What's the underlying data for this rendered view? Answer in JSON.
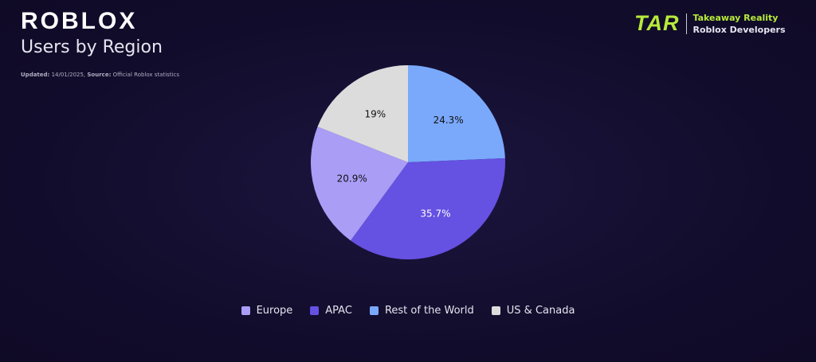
{
  "header": {
    "logo": "ROBLOX",
    "title": "Users by Region",
    "updated_label": "Updated:",
    "updated_value": "14/01/2025,",
    "source_label": "Source:",
    "source_value": "Official Roblox statistics"
  },
  "brand": {
    "logo": "TAR",
    "line1": "Takeaway Reality",
    "line2": "Roblox Developers",
    "accent": "#b7ea3b"
  },
  "chart_data": {
    "type": "pie",
    "title": "Users by Region",
    "start": "top",
    "direction": "clockwise",
    "slices": [
      {
        "name": "Rest of the World",
        "value": 24.3,
        "label": "24.3%",
        "color": "#7aa9fb"
      },
      {
        "name": "APAC",
        "value": 35.7,
        "label": "35.7%",
        "color": "#6551e2"
      },
      {
        "name": "Europe",
        "value": 20.9,
        "label": "20.9%",
        "color": "#a99df6"
      },
      {
        "name": "US & Canada",
        "value": 19,
        "label": "19%",
        "color": "#dcdcdc"
      }
    ],
    "legend_order": [
      "Europe",
      "APAC",
      "Rest of the World",
      "US & Canada"
    ],
    "legend_placement": "bottom"
  }
}
